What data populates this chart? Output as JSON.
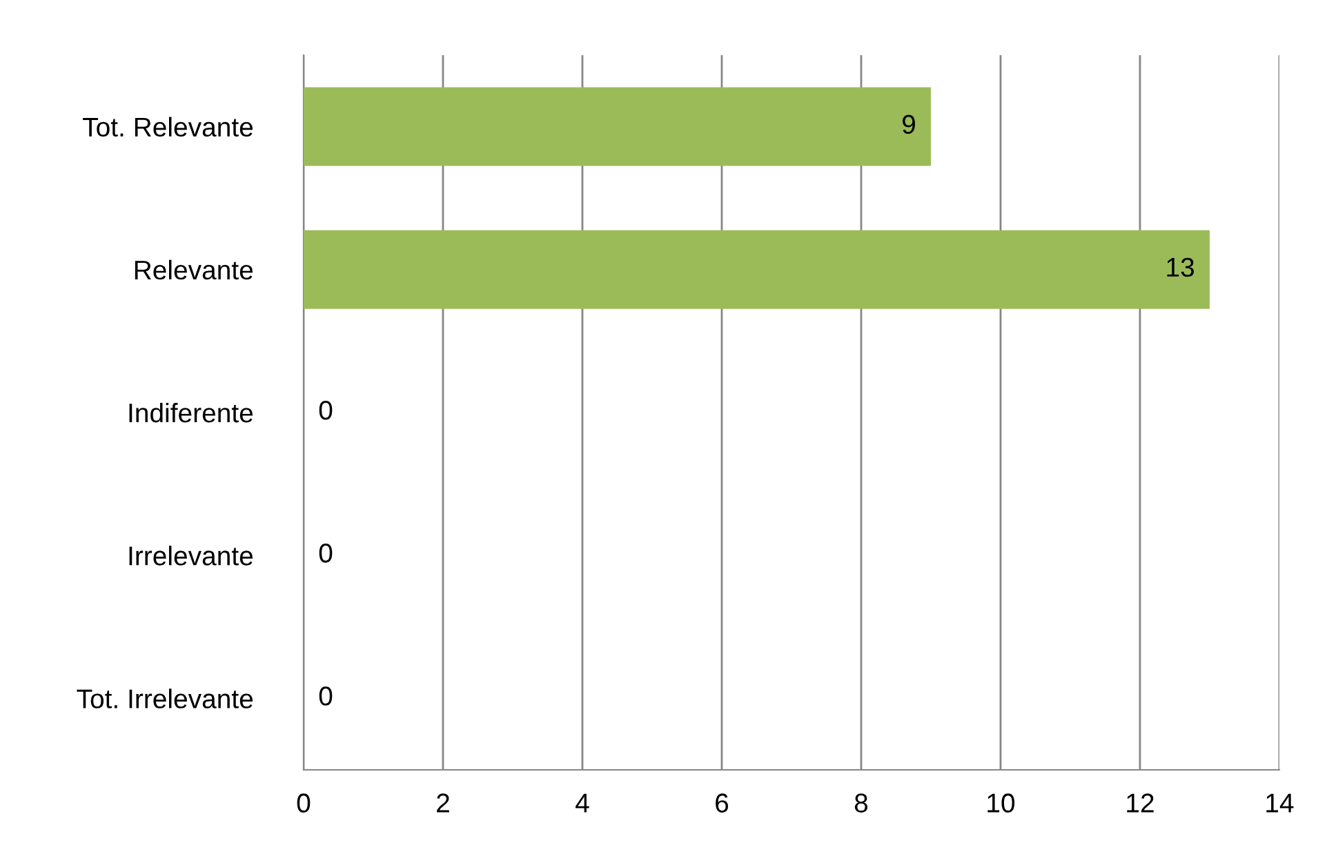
{
  "chart_data": {
    "type": "bar",
    "orientation": "horizontal",
    "categories": [
      "Tot. Relevante",
      "Relevante",
      "Indiferente",
      "Irrelevante",
      "Tot. Irrelevante"
    ],
    "values": [
      9,
      13,
      0,
      0,
      0
    ],
    "color": "#9bbb59",
    "xlim": [
      0,
      14
    ],
    "xticks": [
      0,
      2,
      4,
      6,
      8,
      10,
      12,
      14
    ],
    "grid": "x",
    "data_labels": true
  }
}
